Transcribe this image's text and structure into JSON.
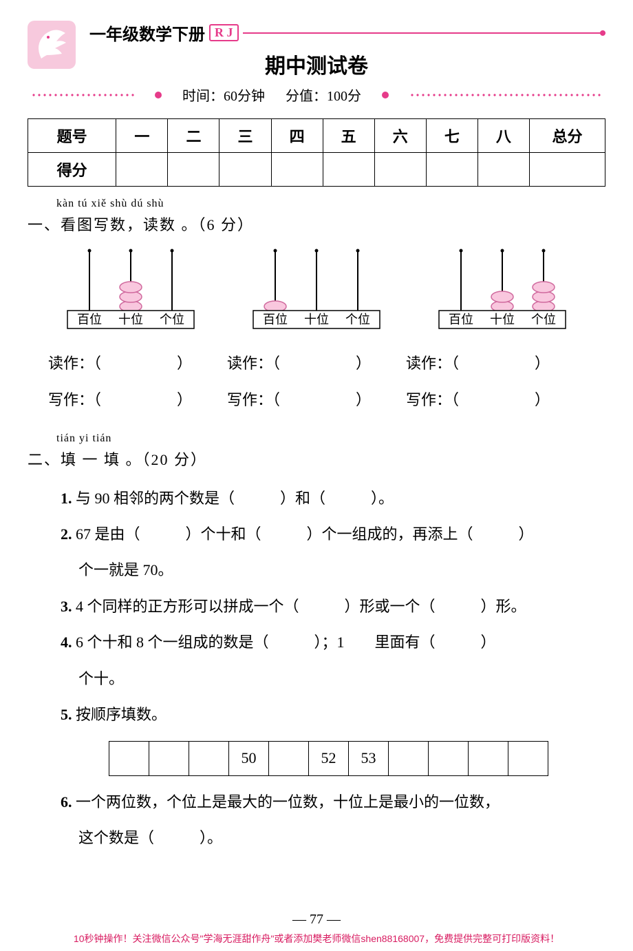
{
  "header": {
    "book_title": "一年级数学下册",
    "edition_badge": "R J",
    "paper_title": "期中测试卷",
    "time_label": "时间：",
    "time_value": "60分钟",
    "score_label": "分值：",
    "score_value": "100分",
    "accent_color": "#e63b8a",
    "logo_bg": "#f7c9dd"
  },
  "score_table": {
    "row1_label": "题号",
    "cols": [
      "一",
      "二",
      "三",
      "四",
      "五",
      "六",
      "七",
      "八",
      "总分"
    ],
    "row2_label": "得分"
  },
  "section1": {
    "pinyin": "kàn tú xiě shù   dú shù",
    "title": "一、看图写数，读数 。（6 分）",
    "place_labels": [
      "百位",
      "十位",
      "个位"
    ],
    "abacuses": [
      {
        "beads": [
          0,
          3,
          0
        ]
      },
      {
        "beads": [
          1,
          0,
          0
        ]
      },
      {
        "beads": [
          0,
          2,
          3
        ]
      }
    ],
    "read_label": "读作：（",
    "write_label": "写作：（",
    "close": "）",
    "bead_fill": "#f9c7de",
    "bead_stroke": "#d06a9e"
  },
  "section2": {
    "pinyin": "tián yi tián",
    "title": "二、填 一 填 。（20 分）",
    "items": {
      "q1": "与 90 相邻的两个数是（　　　）和（　　　）。",
      "q2": "67 是由（　　　）个十和（　　　）个一组成的，再添上（　　　）",
      "q2b": "个一就是 70。",
      "q3": "4 个同样的正方形可以拼成一个（　　　）形或一个（　　　）形。",
      "q4": "6 个十和 8 个一组成的数是（　　　）；1　　里面有（　　　）",
      "q4b": "个十。",
      "q5": "按顺序填数。",
      "q6": "一个两位数，个位上是最大的一位数，十位上是最小的一位数，",
      "q6b": "这个数是（　　　）。"
    },
    "sequence": [
      "",
      "",
      "",
      "50",
      "",
      "52",
      "53",
      "",
      "",
      "",
      ""
    ]
  },
  "page_number": "— 77 —",
  "footer": "10秒钟操作！关注微信公众号\"学海无涯甜作舟\"或者添加樊老师微信shen88168007，免费提供完整可打印版资料！"
}
